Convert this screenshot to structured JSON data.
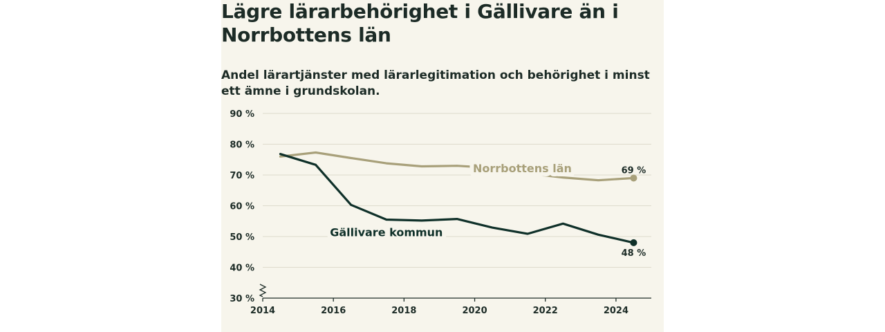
{
  "title": "Lägre lärarbehörighet i Gällivare än i Norrbottens län",
  "subtitle": "Andel lärartjänster med lärarlegitimation och behörighet i minst ett ämne i grundskolan.",
  "chart_data": {
    "type": "line",
    "xlim": [
      2014,
      2025
    ],
    "ylim": [
      30,
      90
    ],
    "x_ticks": [
      2014,
      2016,
      2018,
      2020,
      2022,
      2024
    ],
    "x_tick_labels": [
      "2014",
      "2016",
      "2018",
      "2020",
      "2022",
      "2024"
    ],
    "y_ticks": [
      30,
      40,
      50,
      60,
      70,
      80,
      90
    ],
    "y_tick_labels": [
      "30 %",
      "40 %",
      "50 %",
      "60 %",
      "70 %",
      "80 %",
      "90 %"
    ],
    "grid": true,
    "axis_break": true,
    "series": [
      {
        "name": "Norrbottens län",
        "color": "#a8a07a",
        "x": [
          2014.5,
          2015.5,
          2016.5,
          2017.5,
          2018.5,
          2019.5,
          2020.5,
          2021.5,
          2022.5,
          2023.5,
          2024.5
        ],
        "values": [
          76,
          77.3,
          75.5,
          73.8,
          72.8,
          73,
          72.3,
          70.5,
          69.2,
          68.3,
          69
        ],
        "end_label": "69 %"
      },
      {
        "name": "Gällivare kommun",
        "color": "#0f3029",
        "x": [
          2014.5,
          2015.5,
          2016.5,
          2017.5,
          2018.5,
          2019.5,
          2020.5,
          2021.5,
          2022.5,
          2023.5,
          2024.5
        ],
        "values": [
          76.8,
          73.3,
          60.3,
          55.5,
          55.2,
          55.7,
          52.9,
          50.9,
          54.2,
          50.6,
          48
        ],
        "end_label": "48 %"
      }
    ]
  }
}
